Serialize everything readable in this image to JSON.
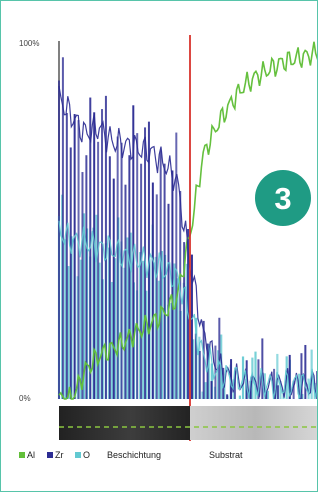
{
  "chart_data": {
    "type": "line",
    "x": [
      0,
      5,
      10,
      15,
      20,
      25,
      30,
      35,
      40,
      45,
      50,
      55,
      60,
      65,
      70,
      75,
      80,
      85,
      90,
      95,
      100
    ],
    "ylim": [
      0,
      100
    ],
    "yticks": [
      "100%",
      "0%"
    ],
    "series": [
      {
        "name": "Al",
        "color": "#62bf3a",
        "values": [
          0,
          0,
          8,
          12,
          14,
          16,
          19,
          21,
          24,
          28,
          46,
          68,
          76,
          82,
          87,
          90,
          92,
          94,
          95,
          96,
          97
        ]
      },
      {
        "name": "Zr",
        "color": "#2c2c93",
        "values": [
          84,
          79,
          74,
          76,
          72,
          71,
          70,
          69,
          66,
          61,
          38,
          18,
          10,
          6,
          5,
          4,
          4,
          4,
          4,
          4,
          4
        ]
      },
      {
        "name": "O",
        "color": "#62c9d1",
        "values": [
          47,
          44,
          44,
          42,
          42,
          40,
          39,
          38,
          36,
          34,
          24,
          12,
          8,
          6,
          5,
          4,
          4,
          4,
          4,
          4,
          4
        ]
      }
    ],
    "interface_x": 50,
    "regions": [
      "Beschichtung",
      "Substrat"
    ]
  },
  "legend": [
    {
      "marker": "Al",
      "label": "Al",
      "color": "#62bf3a"
    },
    {
      "marker": "Zr",
      "label": "Zr",
      "color": "#2c2c93"
    },
    {
      "marker": "O",
      "label": "O",
      "color": "#62c9d1"
    },
    {
      "marker": "coating",
      "label": "Beschichtung",
      "color": "#2f2f2f"
    },
    {
      "marker": "substrate",
      "label": "Substrat",
      "color": "#bdbdbd"
    }
  ],
  "badge": {
    "text": "3",
    "color": "#1f9b84"
  },
  "interface_color": "#d9342c",
  "axis_color": "#808080",
  "dash_color": "#8ac640"
}
